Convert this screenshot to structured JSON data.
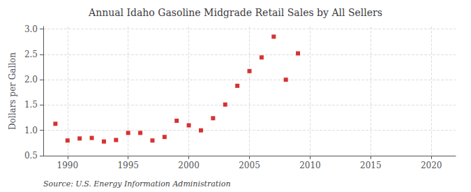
{
  "chart_data": {
    "type": "scatter",
    "title": "Annual Idaho Gasoline Midgrade Retail Sales by All Sellers",
    "ylabel": "Dollars per Gallon",
    "source": "Source: U.S. Energy Information Administration",
    "color": "#cc0000",
    "marker": "square",
    "x": [
      1989,
      1990,
      1991,
      1992,
      1993,
      1994,
      1995,
      1996,
      1997,
      1998,
      1999,
      2000,
      2001,
      2002,
      2003,
      2004,
      2005,
      2006,
      2007,
      2008,
      2009
    ],
    "values": [
      1.13,
      0.8,
      0.84,
      0.85,
      0.78,
      0.81,
      0.95,
      0.95,
      0.8,
      0.87,
      1.19,
      1.1,
      1.0,
      1.24,
      1.51,
      1.88,
      2.17,
      2.44,
      2.85,
      2.0,
      2.52
    ],
    "xlim": [
      1988,
      2022
    ],
    "ylim": [
      0.5,
      3.05
    ],
    "xticks": [
      1990,
      1995,
      2000,
      2005,
      2010,
      2015,
      2020
    ],
    "yticks": [
      0.5,
      {
        "value": 1.0,
        "label": "1.0"
      },
      1.5,
      {
        "value": 2.0,
        "label": "2.0"
      },
      2.5,
      {
        "value": 3.0,
        "label": "3.0"
      }
    ],
    "grid": true
  }
}
